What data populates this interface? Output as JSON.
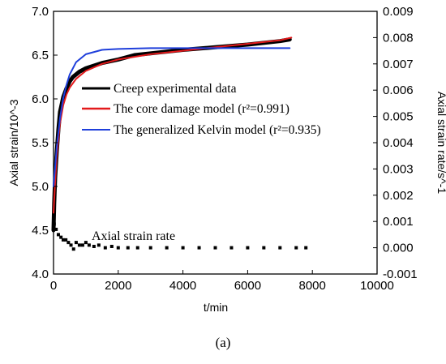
{
  "chart_data": {
    "type": "line",
    "xlabel": "t/min",
    "ylabel_left": "Axial strain/10^-3",
    "ylabel_right": "Axial strain rate/s^-1",
    "xlim": [
      0,
      10000
    ],
    "ylim_left": [
      4.0,
      7.0
    ],
    "ylim_right": [
      -0.001,
      0.009
    ],
    "x_ticks": [
      "0",
      "2000",
      "4000",
      "6000",
      "8000",
      "10000"
    ],
    "y_left_ticks": [
      "4.0",
      "4.5",
      "5.0",
      "5.5",
      "6.0",
      "6.5",
      "7.0"
    ],
    "y_right_ticks": [
      "-0.001",
      "0.000",
      "0.001",
      "0.002",
      "0.003",
      "0.004",
      "0.005",
      "0.006",
      "0.007",
      "0.008",
      "0.009"
    ],
    "caption": "(a)",
    "legend": {
      "placement": "center-right",
      "entries": [
        {
          "label": "Creep experimental data",
          "color": "#000000"
        },
        {
          "label": "The core damage model (r²=0.991)",
          "color": "#e31a1c"
        },
        {
          "label": "The generalized Kelvin model (r²=0.935)",
          "color": "#1f3fdb"
        }
      ]
    },
    "annotation": {
      "text": "Axial strain rate",
      "x": 1500,
      "y": 4.5
    },
    "series": [
      {
        "name": "Creep experimental data",
        "axis": "left",
        "color": "#000000",
        "style": "thick-line",
        "x": [
          0,
          20,
          50,
          100,
          150,
          200,
          300,
          400,
          500,
          600,
          800,
          1000,
          1500,
          2000,
          2500,
          3000,
          4000,
          5000,
          6000,
          7000,
          7300
        ],
        "y": [
          4.5,
          4.8,
          5.1,
          5.4,
          5.65,
          5.85,
          6.02,
          6.12,
          6.2,
          6.25,
          6.31,
          6.35,
          6.41,
          6.45,
          6.5,
          6.52,
          6.56,
          6.59,
          6.62,
          6.66,
          6.68
        ]
      },
      {
        "name": "The core damage model (r²=0.991)",
        "axis": "left",
        "color": "#e31a1c",
        "style": "line",
        "x": [
          0,
          50,
          100,
          200,
          300,
          400,
          500,
          700,
          1000,
          1500,
          2000,
          3000,
          4000,
          5000,
          6000,
          7000,
          7350
        ],
        "y": [
          4.7,
          5.05,
          5.35,
          5.72,
          5.93,
          6.05,
          6.13,
          6.23,
          6.32,
          6.4,
          6.45,
          6.51,
          6.55,
          6.59,
          6.63,
          6.67,
          6.7
        ]
      },
      {
        "name": "The generalized Kelvin model (r²=0.935)",
        "axis": "left",
        "color": "#1f3fdb",
        "style": "line",
        "x": [
          0,
          100,
          200,
          300,
          400,
          500,
          700,
          1000,
          1500,
          2000,
          3000,
          4000,
          5000,
          6000,
          7000,
          7300
        ],
        "y": [
          5.0,
          5.45,
          5.78,
          6.01,
          6.16,
          6.28,
          6.42,
          6.51,
          6.56,
          6.57,
          6.58,
          6.58,
          6.58,
          6.58,
          6.58,
          6.58
        ]
      },
      {
        "name": "Axial strain rate",
        "axis": "right",
        "color": "#000000",
        "style": "markers",
        "x": [
          20,
          80,
          150,
          230,
          300,
          380,
          460,
          540,
          620,
          700,
          800,
          900,
          1000,
          1100,
          1250,
          1400,
          1600,
          1800,
          2000,
          2300,
          2600,
          3000,
          3500,
          4000,
          4500,
          5000,
          5500,
          6000,
          6500,
          7000,
          7500,
          7800
        ],
        "y": [
          0.0009,
          0.0007,
          0.0005,
          0.0004,
          0.0003,
          0.0003,
          0.0002,
          0.0001,
          -5e-05,
          0.0002,
          0.0001,
          0.0001,
          0.0002,
          0.0001,
          5e-05,
          0.0001,
          0.0,
          5e-05,
          0.0,
          0.0,
          0.0,
          0.0,
          0.0,
          0.0,
          0.0,
          0.0,
          0.0,
          0.0,
          0.0,
          0.0,
          0.0,
          0.0
        ]
      }
    ]
  }
}
